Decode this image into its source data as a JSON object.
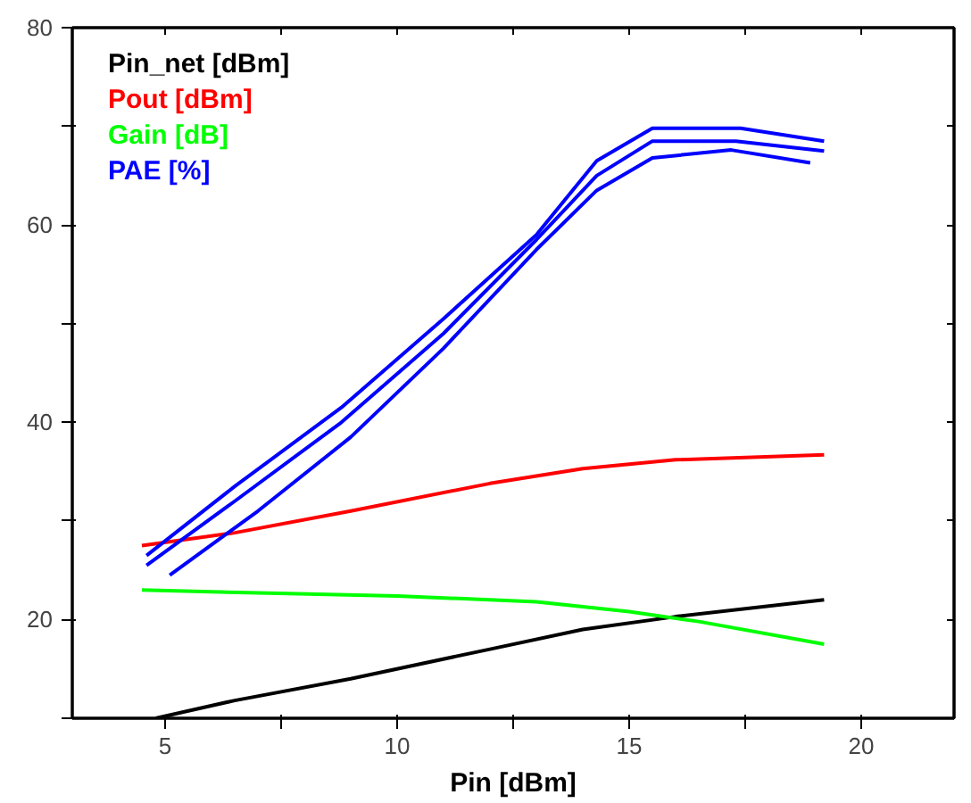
{
  "chart_data": {
    "type": "line",
    "xlabel": "Pin [dBm]",
    "xlim": [
      3,
      22
    ],
    "ylim": [
      10,
      80
    ],
    "xticks": [
      5,
      {
        "value": 7.5,
        "label": null
      },
      10,
      {
        "value": 12.5,
        "label": null
      },
      15,
      {
        "value": 17.5,
        "label": null
      },
      20
    ],
    "yticks": [
      {
        "value": 10,
        "label": null
      },
      20,
      {
        "value": 30,
        "label": null
      },
      40,
      {
        "value": 50,
        "label": null
      },
      60,
      {
        "value": 70,
        "label": null
      },
      80
    ],
    "grid": false,
    "legend": "top left",
    "marker": "none",
    "line_style": "solid",
    "series": [
      {
        "name": "Pin_net [dBm]",
        "color": "#000000",
        "x": [
          4.8,
          6.5,
          9,
          12,
          14,
          16,
          19.2
        ],
        "values": [
          10,
          11.8,
          14,
          17,
          19,
          20.3,
          22
        ]
      },
      {
        "name": "Pout [dBm]",
        "color": "#ff0000",
        "x": [
          4.5,
          6.5,
          9,
          12,
          14,
          16,
          19.2
        ],
        "values": [
          27.5,
          28.8,
          31,
          33.8,
          35.3,
          36.2,
          36.7
        ]
      },
      {
        "name": "Gain [dB]",
        "color": "#00ff00",
        "x": [
          4.5,
          7,
          10,
          13,
          15,
          16.5,
          19.2
        ],
        "values": [
          23,
          22.7,
          22.4,
          21.8,
          20.8,
          19.8,
          17.5
        ]
      },
      {
        "name": "PAE [%]",
        "color": "#0000ff",
        "x": [
          4.6,
          6.5,
          8.8,
          11,
          13,
          14.3,
          15.5,
          17.4,
          19.2
        ],
        "values": [
          26.5,
          33.5,
          41.5,
          50.5,
          59,
          66.5,
          69.8,
          69.8,
          68.5
        ]
      },
      {
        "color": "#0000ff",
        "x": [
          4.6,
          6.5,
          8.8,
          11,
          13,
          14.3,
          15.5,
          17.3,
          19.2
        ],
        "values": [
          25.5,
          32,
          40,
          49,
          58.5,
          65,
          68.5,
          68.5,
          67.5
        ]
      },
      {
        "color": "#0000ff",
        "x": [
          5.1,
          7,
          9,
          11,
          13,
          14.3,
          15.5,
          17.2,
          18.9
        ],
        "values": [
          24.5,
          31,
          38.5,
          47.5,
          57.5,
          63.5,
          66.8,
          67.6,
          66.3
        ]
      }
    ]
  }
}
